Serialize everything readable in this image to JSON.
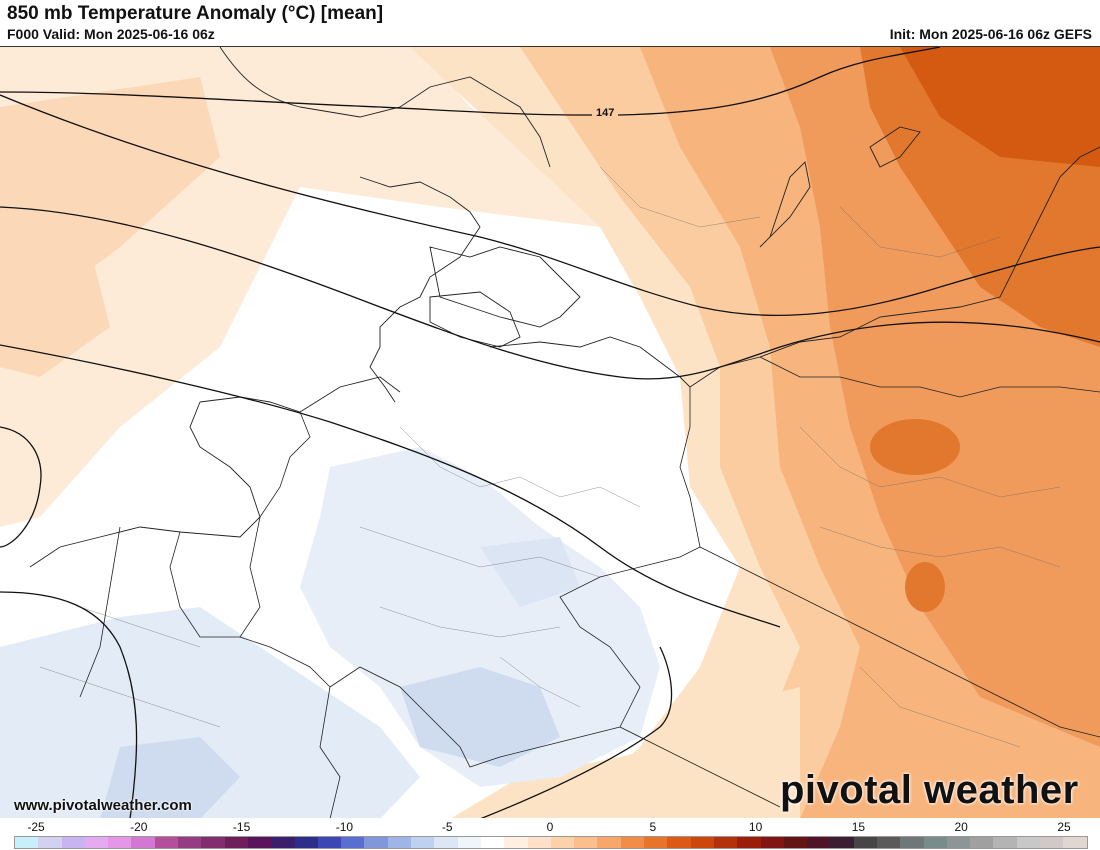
{
  "header": {
    "title": "850 mb Temperature Anomaly (°C) [mean]",
    "valid": "F000 Valid: Mon 2025-06-16 06z",
    "init": "Init: Mon 2025-06-16 06z GEFS"
  },
  "map": {
    "contour_label": "147",
    "website": "www.pivotalweather.com",
    "brand": "pivotal weather"
  },
  "colorbar": {
    "ticks": [
      "-25",
      "-20",
      "-15",
      "-10",
      "-5",
      "0",
      "5",
      "10",
      "15",
      "20",
      "25"
    ],
    "colors": [
      "#c8f0fa",
      "#d2d2f0",
      "#c8b4f0",
      "#e6aaf0",
      "#e696e6",
      "#d278d2",
      "#b4509b",
      "#963c82",
      "#822d6e",
      "#6e1e5a",
      "#5a145a",
      "#3c1e6e",
      "#2d2d8c",
      "#3c46b4",
      "#5a6ed2",
      "#8296dc",
      "#a0b4e6",
      "#bed2f0",
      "#dce6f5",
      "#f0f5fa",
      "#ffffff",
      "#fff0e1",
      "#fee1c8",
      "#fdd2aa",
      "#fcbe8c",
      "#f8a66a",
      "#f28c46",
      "#e8742a",
      "#dc5a14",
      "#cd460a",
      "#b4320a",
      "#9b1e0a",
      "#821414",
      "#641414",
      "#501428",
      "#3c1e32",
      "#464646",
      "#5a5a5a",
      "#6e7878",
      "#788c8c",
      "#8c9696",
      "#a0a0a0",
      "#b4b4b4",
      "#c8c8c8",
      "#d2c8c8",
      "#e1d7d2"
    ]
  }
}
